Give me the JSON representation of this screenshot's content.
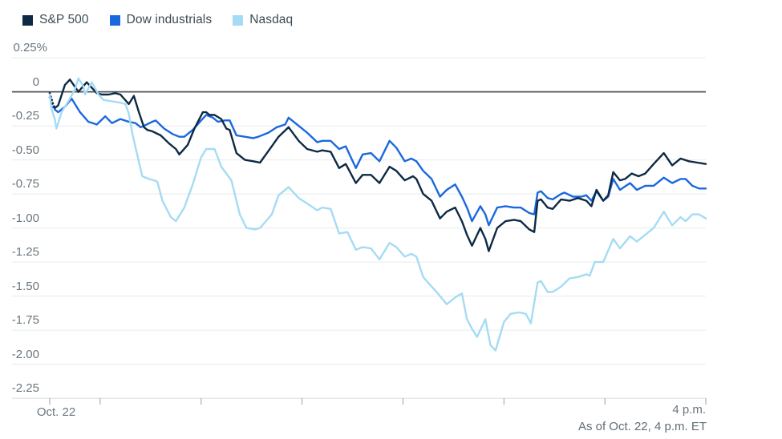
{
  "legend": {
    "items": [
      {
        "label": "S&P 500",
        "color": "#0d2944"
      },
      {
        "label": "Dow industrials",
        "color": "#1a68de"
      },
      {
        "label": "Nasdaq",
        "color": "#a5dbf5"
      }
    ]
  },
  "footer": {
    "start_label": "Oct. 22",
    "end_time_label": "4 p.m.",
    "as_of": "As of Oct. 22, 4 p.m. ET"
  },
  "colors": {
    "background": "#ffffff",
    "gridline": "#e8eaea",
    "zero_line": "#54565a",
    "axis_line": "#d9dcdc",
    "axis_tick": "#9aa0a4",
    "label_text": "#6a767e",
    "legend_text": "#3d4b54"
  },
  "chart_data": {
    "type": "line",
    "title": "",
    "subtitle": "Intraday percent change, Oct. 22, 9:30 a.m. to 4 p.m. ET",
    "unit": "%",
    "grid": "horizontal",
    "legend_position": "top-left",
    "x_axis": {
      "start_minute": 0,
      "end_minute": 390,
      "tick_minutes": [
        0,
        30,
        90,
        150,
        210,
        270,
        330,
        390
      ],
      "label_left": "Oct. 22",
      "label_right": "4 p.m."
    },
    "y_axis": {
      "ticks": [
        0.25,
        0,
        -0.25,
        -0.5,
        -0.75,
        -1,
        -1.25,
        -1.5,
        -1.75,
        -2,
        -2.25
      ],
      "tick_labels": [
        "0.25%",
        "0",
        "-0.25",
        "-0.50",
        "-0.75",
        "-1.00",
        "-1.25",
        "-1.50",
        "-1.75",
        "-2.00",
        "-2.25"
      ],
      "range": [
        -2.35,
        0.35
      ]
    },
    "series": [
      {
        "name": "S&P 500",
        "color": "#0d2944",
        "dotted_lead": [
          [
            0,
            -0.01
          ],
          [
            1,
            -0.05
          ],
          [
            2,
            -0.09
          ],
          [
            3,
            -0.12
          ]
        ],
        "points": [
          [
            3,
            -0.12
          ],
          [
            5,
            -0.1
          ],
          [
            9,
            0.05
          ],
          [
            12,
            0.09
          ],
          [
            17,
            0.0
          ],
          [
            22,
            0.07
          ],
          [
            28,
            -0.01
          ],
          [
            31,
            -0.02
          ],
          [
            35,
            -0.02
          ],
          [
            39,
            -0.01
          ],
          [
            42,
            -0.02
          ],
          [
            47,
            -0.09
          ],
          [
            50,
            -0.03
          ],
          [
            53,
            -0.15
          ],
          [
            56,
            -0.26
          ],
          [
            58,
            -0.28
          ],
          [
            61,
            -0.29
          ],
          [
            66,
            -0.32
          ],
          [
            71,
            -0.38
          ],
          [
            75,
            -0.42
          ],
          [
            77,
            -0.46
          ],
          [
            82,
            -0.39
          ],
          [
            86,
            -0.27
          ],
          [
            91,
            -0.15
          ],
          [
            93,
            -0.15
          ],
          [
            95,
            -0.17
          ],
          [
            98,
            -0.17
          ],
          [
            102,
            -0.2
          ],
          [
            105,
            -0.27
          ],
          [
            107,
            -0.28
          ],
          [
            111,
            -0.45
          ],
          [
            116,
            -0.5
          ],
          [
            121,
            -0.51
          ],
          [
            125,
            -0.52
          ],
          [
            132,
            -0.4
          ],
          [
            136,
            -0.33
          ],
          [
            142,
            -0.26
          ],
          [
            148,
            -0.36
          ],
          [
            153,
            -0.42
          ],
          [
            159,
            -0.44
          ],
          [
            162,
            -0.43
          ],
          [
            167,
            -0.44
          ],
          [
            172,
            -0.56
          ],
          [
            176,
            -0.53
          ],
          [
            182,
            -0.67
          ],
          [
            186,
            -0.61
          ],
          [
            191,
            -0.61
          ],
          [
            196,
            -0.67
          ],
          [
            202,
            -0.55
          ],
          [
            206,
            -0.58
          ],
          [
            211,
            -0.65
          ],
          [
            216,
            -0.62
          ],
          [
            218,
            -0.64
          ],
          [
            222,
            -0.75
          ],
          [
            227,
            -0.8
          ],
          [
            232,
            -0.93
          ],
          [
            236,
            -0.88
          ],
          [
            241,
            -0.85
          ],
          [
            245,
            -0.95
          ],
          [
            248,
            -1.05
          ],
          [
            251,
            -1.13
          ],
          [
            256,
            -1.0
          ],
          [
            259,
            -1.08
          ],
          [
            261,
            -1.17
          ],
          [
            266,
            -1.0
          ],
          [
            271,
            -0.95
          ],
          [
            276,
            -0.94
          ],
          [
            280,
            -0.95
          ],
          [
            285,
            -1.01
          ],
          [
            288,
            -1.03
          ],
          [
            290,
            -0.8
          ],
          [
            292,
            -0.79
          ],
          [
            296,
            -0.85
          ],
          [
            299,
            -0.86
          ],
          [
            304,
            -0.79
          ],
          [
            309,
            -0.8
          ],
          [
            314,
            -0.78
          ],
          [
            319,
            -0.8
          ],
          [
            322,
            -0.84
          ],
          [
            325,
            -0.72
          ],
          [
            329,
            -0.8
          ],
          [
            332,
            -0.76
          ],
          [
            335,
            -0.59
          ],
          [
            339,
            -0.65
          ],
          [
            342,
            -0.64
          ],
          [
            346,
            -0.6
          ],
          [
            350,
            -0.62
          ],
          [
            354,
            -0.6
          ],
          [
            359,
            -0.53
          ],
          [
            365,
            -0.45
          ],
          [
            370,
            -0.54
          ],
          [
            375,
            -0.49
          ],
          [
            380,
            -0.51
          ],
          [
            385,
            -0.52
          ],
          [
            390,
            -0.53
          ]
        ]
      },
      {
        "name": "Dow industrials",
        "color": "#1a68de",
        "dotted_lead": [
          [
            0,
            -0.04
          ],
          [
            1,
            -0.08
          ],
          [
            2,
            -0.11
          ],
          [
            3,
            -0.13
          ]
        ],
        "points": [
          [
            3,
            -0.13
          ],
          [
            5,
            -0.15
          ],
          [
            9,
            -0.11
          ],
          [
            13,
            -0.05
          ],
          [
            18,
            -0.15
          ],
          [
            23,
            -0.22
          ],
          [
            28,
            -0.24
          ],
          [
            33,
            -0.18
          ],
          [
            37,
            -0.23
          ],
          [
            42,
            -0.2
          ],
          [
            47,
            -0.22
          ],
          [
            51,
            -0.23
          ],
          [
            54,
            -0.26
          ],
          [
            56,
            -0.25
          ],
          [
            61,
            -0.22
          ],
          [
            63,
            -0.21
          ],
          [
            68,
            -0.27
          ],
          [
            73,
            -0.31
          ],
          [
            77,
            -0.33
          ],
          [
            80,
            -0.33
          ],
          [
            85,
            -0.28
          ],
          [
            90,
            -0.21
          ],
          [
            93,
            -0.17
          ],
          [
            97,
            -0.19
          ],
          [
            100,
            -0.22
          ],
          [
            104,
            -0.21
          ],
          [
            107,
            -0.21
          ],
          [
            111,
            -0.32
          ],
          [
            116,
            -0.33
          ],
          [
            121,
            -0.34
          ],
          [
            124,
            -0.33
          ],
          [
            130,
            -0.3
          ],
          [
            135,
            -0.26
          ],
          [
            140,
            -0.24
          ],
          [
            142,
            -0.19
          ],
          [
            148,
            -0.25
          ],
          [
            153,
            -0.3
          ],
          [
            159,
            -0.37
          ],
          [
            162,
            -0.36
          ],
          [
            167,
            -0.36
          ],
          [
            172,
            -0.42
          ],
          [
            176,
            -0.4
          ],
          [
            182,
            -0.56
          ],
          [
            186,
            -0.46
          ],
          [
            191,
            -0.45
          ],
          [
            196,
            -0.51
          ],
          [
            202,
            -0.36
          ],
          [
            206,
            -0.41
          ],
          [
            211,
            -0.51
          ],
          [
            215,
            -0.49
          ],
          [
            218,
            -0.51
          ],
          [
            222,
            -0.58
          ],
          [
            227,
            -0.64
          ],
          [
            232,
            -0.77
          ],
          [
            236,
            -0.72
          ],
          [
            241,
            -0.68
          ],
          [
            245,
            -0.77
          ],
          [
            248,
            -0.85
          ],
          [
            251,
            -0.95
          ],
          [
            256,
            -0.84
          ],
          [
            259,
            -0.9
          ],
          [
            261,
            -0.98
          ],
          [
            266,
            -0.85
          ],
          [
            271,
            -0.84
          ],
          [
            276,
            -0.85
          ],
          [
            280,
            -0.85
          ],
          [
            285,
            -0.89
          ],
          [
            288,
            -0.9
          ],
          [
            290,
            -0.74
          ],
          [
            292,
            -0.73
          ],
          [
            296,
            -0.78
          ],
          [
            299,
            -0.79
          ],
          [
            304,
            -0.75
          ],
          [
            306,
            -0.74
          ],
          [
            311,
            -0.77
          ],
          [
            316,
            -0.77
          ],
          [
            319,
            -0.76
          ],
          [
            322,
            -0.8
          ],
          [
            325,
            -0.73
          ],
          [
            329,
            -0.8
          ],
          [
            332,
            -0.77
          ],
          [
            335,
            -0.64
          ],
          [
            339,
            -0.72
          ],
          [
            345,
            -0.67
          ],
          [
            349,
            -0.72
          ],
          [
            354,
            -0.69
          ],
          [
            359,
            -0.69
          ],
          [
            365,
            -0.63
          ],
          [
            370,
            -0.67
          ],
          [
            375,
            -0.64
          ],
          [
            378,
            -0.64
          ],
          [
            382,
            -0.69
          ],
          [
            386,
            -0.71
          ],
          [
            390,
            -0.71
          ]
        ]
      },
      {
        "name": "Nasdaq",
        "color": "#a5dbf5",
        "dotted_lead": [],
        "points": [
          [
            0,
            -0.02
          ],
          [
            1,
            -0.12
          ],
          [
            3,
            -0.2
          ],
          [
            4,
            -0.27
          ],
          [
            7,
            -0.15
          ],
          [
            12,
            -0.05
          ],
          [
            15,
            0.02
          ],
          [
            17,
            0.1
          ],
          [
            20,
            0.04
          ],
          [
            21,
            -0.02
          ],
          [
            24,
            0.05
          ],
          [
            25,
            0.07
          ],
          [
            29,
            -0.02
          ],
          [
            32,
            -0.06
          ],
          [
            37,
            -0.07
          ],
          [
            42,
            -0.08
          ],
          [
            45,
            -0.09
          ],
          [
            47,
            -0.16
          ],
          [
            49,
            -0.3
          ],
          [
            51,
            -0.41
          ],
          [
            55,
            -0.62
          ],
          [
            59,
            -0.64
          ],
          [
            62,
            -0.65
          ],
          [
            64,
            -0.66
          ],
          [
            67,
            -0.8
          ],
          [
            72,
            -0.92
          ],
          [
            75,
            -0.95
          ],
          [
            80,
            -0.85
          ],
          [
            85,
            -0.68
          ],
          [
            90,
            -0.48
          ],
          [
            93,
            -0.42
          ],
          [
            98,
            -0.42
          ],
          [
            102,
            -0.55
          ],
          [
            108,
            -0.65
          ],
          [
            113,
            -0.9
          ],
          [
            117,
            -1.0
          ],
          [
            122,
            -1.01
          ],
          [
            125,
            -1.0
          ],
          [
            132,
            -0.9
          ],
          [
            136,
            -0.76
          ],
          [
            142,
            -0.7
          ],
          [
            148,
            -0.78
          ],
          [
            153,
            -0.82
          ],
          [
            159,
            -0.87
          ],
          [
            162,
            -0.85
          ],
          [
            167,
            -0.86
          ],
          [
            172,
            -1.04
          ],
          [
            177,
            -1.03
          ],
          [
            182,
            -1.16
          ],
          [
            186,
            -1.14
          ],
          [
            191,
            -1.15
          ],
          [
            196,
            -1.23
          ],
          [
            202,
            -1.11
          ],
          [
            206,
            -1.14
          ],
          [
            211,
            -1.21
          ],
          [
            215,
            -1.19
          ],
          [
            218,
            -1.21
          ],
          [
            222,
            -1.36
          ],
          [
            227,
            -1.43
          ],
          [
            230,
            -1.47
          ],
          [
            236,
            -1.56
          ],
          [
            241,
            -1.51
          ],
          [
            245,
            -1.48
          ],
          [
            248,
            -1.67
          ],
          [
            251,
            -1.74
          ],
          [
            254,
            -1.8
          ],
          [
            259,
            -1.67
          ],
          [
            262,
            -1.86
          ],
          [
            265,
            -1.9
          ],
          [
            270,
            -1.69
          ],
          [
            274,
            -1.63
          ],
          [
            279,
            -1.62
          ],
          [
            283,
            -1.63
          ],
          [
            286,
            -1.7
          ],
          [
            290,
            -1.4
          ],
          [
            292,
            -1.39
          ],
          [
            296,
            -1.47
          ],
          [
            299,
            -1.47
          ],
          [
            304,
            -1.43
          ],
          [
            309,
            -1.37
          ],
          [
            314,
            -1.36
          ],
          [
            319,
            -1.34
          ],
          [
            321,
            -1.35
          ],
          [
            324,
            -1.25
          ],
          [
            329,
            -1.25
          ],
          [
            335,
            -1.08
          ],
          [
            339,
            -1.15
          ],
          [
            345,
            -1.06
          ],
          [
            349,
            -1.1
          ],
          [
            354,
            -1.05
          ],
          [
            359,
            -1.0
          ],
          [
            365,
            -0.88
          ],
          [
            370,
            -0.98
          ],
          [
            375,
            -0.92
          ],
          [
            378,
            -0.95
          ],
          [
            382,
            -0.9
          ],
          [
            386,
            -0.9
          ],
          [
            390,
            -0.93
          ]
        ]
      }
    ]
  }
}
